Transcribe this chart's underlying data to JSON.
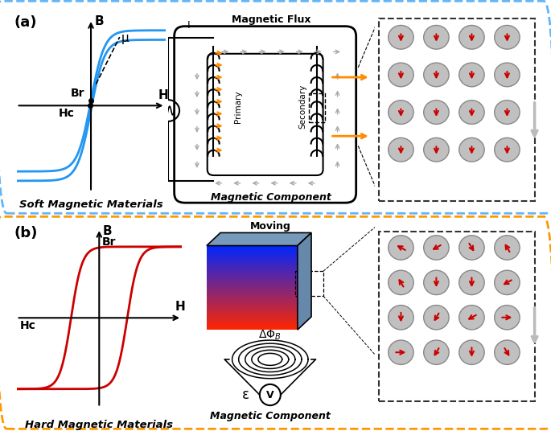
{
  "panel_a_label": "(a)",
  "panel_b_label": "(b)",
  "soft_title": "Soft Magnetic Materials",
  "hard_title": "Hard Magnetic Materials",
  "transformer_title": "Magnetic Flux",
  "transformer_subtitle": "Magnetic Component",
  "generator_subtitle": "Magnetic Component",
  "soft_curve_color": "#2196F3",
  "hard_curve_color": "#CC0000",
  "panel_a_border_color": "#64B5F6",
  "panel_b_border_color": "#FF9800",
  "arrow_color": "#FF8C00",
  "gray_arrow_color": "#AAAAAA",
  "domain_circle_color": "#C0C0C0",
  "domain_arrow_color": "#CC0000"
}
